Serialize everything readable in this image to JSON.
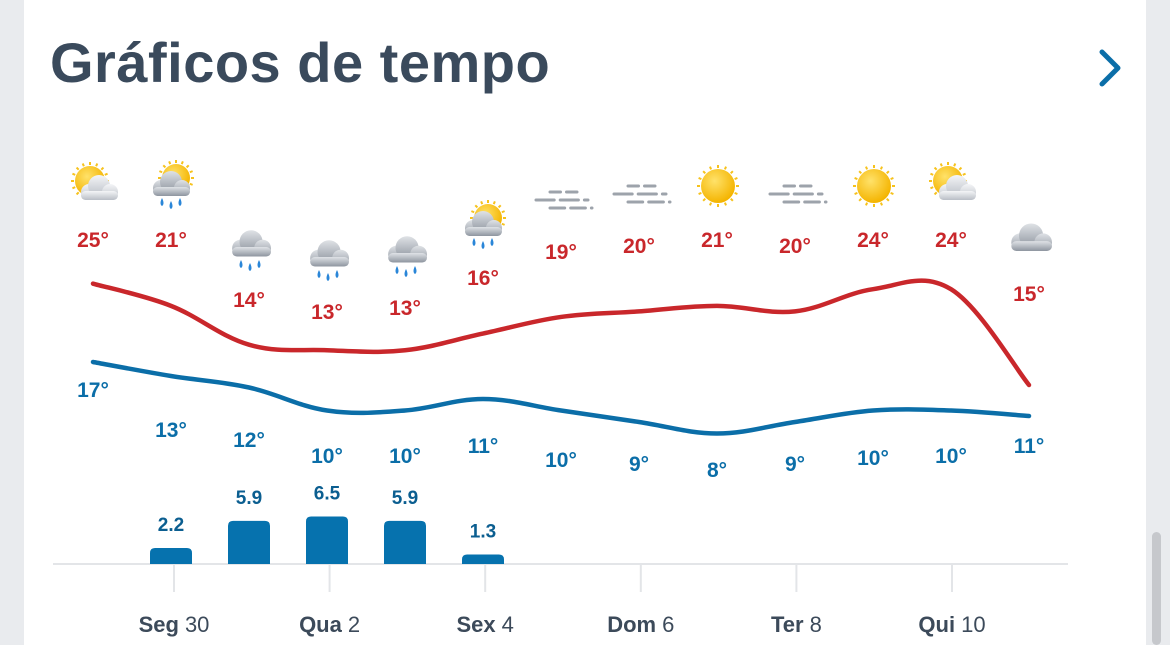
{
  "header": {
    "title": "Gráficos de tempo",
    "more_icon": "chevron-right-icon"
  },
  "colors": {
    "max_line": "#c9272b",
    "min_line": "#0b6ea8",
    "rain_bar": "#0672ae",
    "title": "#3a4a5c"
  },
  "chart_data": {
    "type": "line",
    "x_labels": [
      {
        "day": "Seg",
        "num": "30"
      },
      {
        "day": "Qua",
        "num": "2"
      },
      {
        "day": "Sex",
        "num": "4"
      },
      {
        "day": "Dom",
        "num": "6"
      },
      {
        "day": "Ter",
        "num": "8"
      },
      {
        "day": "Qui",
        "num": "10"
      }
    ],
    "icons": [
      "partly-cloudy-icon",
      "partly-cloudy-rain-icon",
      "rain-cloud-icon",
      "rain-cloud-icon",
      "rain-cloud-icon",
      "partly-cloudy-rain-icon",
      "fog-icon",
      "fog-icon",
      "sun-icon",
      "fog-icon",
      "sun-icon",
      "partly-cloudy-icon",
      "cloud-icon"
    ],
    "max_temps": [
      25,
      21,
      14,
      13,
      13,
      16,
      19,
      20,
      21,
      20,
      24,
      24,
      15
    ],
    "min_temps": [
      17,
      13,
      12,
      10,
      10,
      11,
      10,
      9,
      8,
      9,
      10,
      10,
      11
    ],
    "temp_labels_max": [
      "25°",
      "21°",
      "14°",
      "13°",
      "13°",
      "16°",
      "19°",
      "20°",
      "21°",
      "20°",
      "24°",
      "24°",
      "15°"
    ],
    "temp_labels_min": [
      "17°",
      "13°",
      "12°",
      "10°",
      "10°",
      "11°",
      "10°",
      "9°",
      "8°",
      "9°",
      "10°",
      "10°",
      "11°"
    ],
    "precipitation": [
      null,
      2.2,
      5.9,
      6.5,
      5.9,
      1.3,
      null,
      null,
      null,
      null,
      null,
      null,
      null
    ],
    "precipitation_labels": [
      "",
      "2.2",
      "5.9",
      "6.5",
      "5.9",
      "1.3",
      "",
      "",
      "",
      "",
      "",
      "",
      ""
    ],
    "grid": false
  }
}
